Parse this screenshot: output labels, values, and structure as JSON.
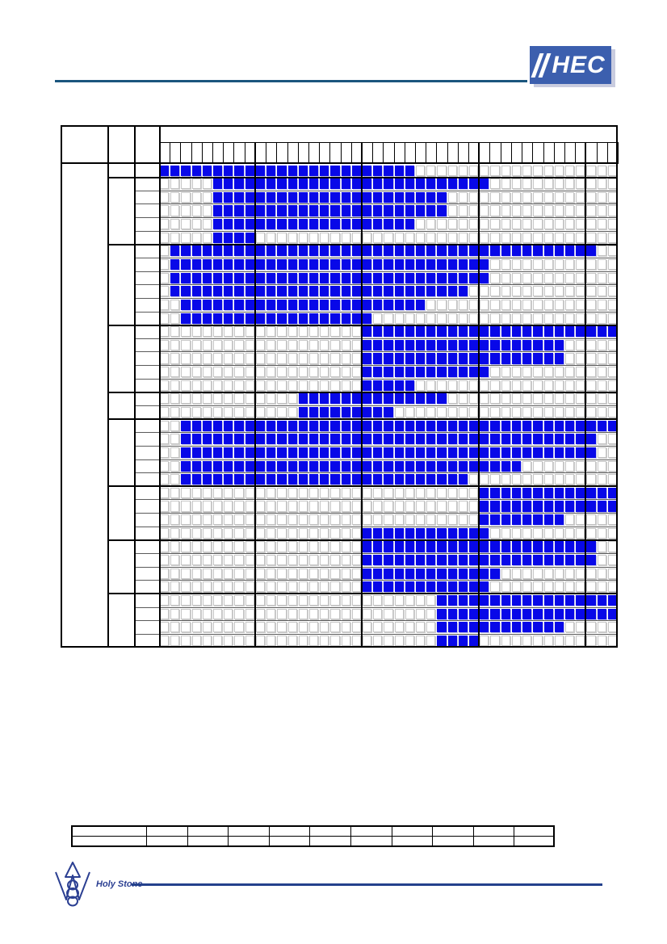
{
  "header": {
    "logo_text": "HEC",
    "logo_bg": "#3c5fae",
    "logo_fg": "#ffffff",
    "logo_shadow": "#c9ccdf",
    "rule_color": "#1a567e"
  },
  "chart": {
    "columns": 43,
    "col_group_breaks": [
      9,
      19,
      30,
      40
    ],
    "row_groups": [
      1,
      5,
      6,
      5,
      2,
      5,
      4,
      4,
      4
    ],
    "cell_on_color": "#0808e8",
    "cell_off_color": "#ffffff",
    "heavy_line_color": "#000000",
    "light_line_color": "#5a5a5a",
    "rows": [
      {
        "start": 1,
        "end": 24
      },
      {
        "start": 6,
        "end": 31
      },
      {
        "start": 6,
        "end": 27
      },
      {
        "start": 6,
        "end": 27
      },
      {
        "start": 6,
        "end": 24
      },
      {
        "start": 6,
        "end": 9
      },
      {
        "start": 2,
        "end": 41
      },
      {
        "start": 2,
        "end": 31
      },
      {
        "start": 2,
        "end": 31
      },
      {
        "start": 2,
        "end": 29
      },
      {
        "start": 3,
        "end": 25
      },
      {
        "start": 3,
        "end": 20
      },
      {
        "start": 20,
        "end": 43
      },
      {
        "start": 20,
        "end": 38
      },
      {
        "start": 20,
        "end": 38
      },
      {
        "start": 20,
        "end": 31
      },
      {
        "start": 20,
        "end": 24
      },
      {
        "start": 14,
        "end": 27
      },
      {
        "start": 14,
        "end": 22
      },
      {
        "start": 3,
        "end": 43
      },
      {
        "start": 3,
        "end": 41
      },
      {
        "start": 3,
        "end": 41
      },
      {
        "start": 3,
        "end": 34
      },
      {
        "start": 3,
        "end": 29
      },
      {
        "start": 31,
        "end": 43
      },
      {
        "start": 31,
        "end": 43
      },
      {
        "start": 31,
        "end": 38
      },
      {
        "start": 20,
        "end": 31
      },
      {
        "start": 20,
        "end": 41
      },
      {
        "start": 20,
        "end": 41
      },
      {
        "start": 20,
        "end": 32
      },
      {
        "start": 20,
        "end": 31
      },
      {
        "start": 27,
        "end": 43
      },
      {
        "start": 27,
        "end": 43
      },
      {
        "start": 27,
        "end": 38
      },
      {
        "start": 27,
        "end": 30
      }
    ]
  },
  "bottom_table": {
    "rows": 2,
    "columns": 11
  },
  "footer": {
    "brand": "Holy Stone",
    "brand_color": "#2b3f92",
    "rule_color": "#24418c"
  }
}
